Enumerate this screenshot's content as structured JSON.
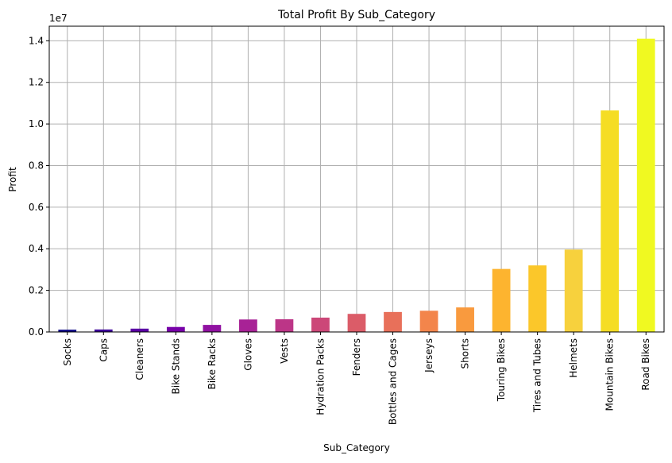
{
  "chart_data": {
    "type": "bar",
    "title": "Total Profit By Sub_Category",
    "xlabel": "Sub_Category",
    "ylabel": "Profit",
    "y_offset_label": "1e7",
    "ylim": [
      0,
      14700000
    ],
    "yticks": [
      0,
      2000000,
      4000000,
      6000000,
      8000000,
      10000000,
      12000000,
      14000000
    ],
    "ytick_labels": [
      "0.0",
      "0.2",
      "0.4",
      "0.6",
      "0.8",
      "1.0",
      "1.2",
      "1.4"
    ],
    "grid": true,
    "categories": [
      "Socks",
      "Caps",
      "Cleaners",
      "Bike Stands",
      "Bike Racks",
      "Gloves",
      "Vests",
      "Hydration Packs",
      "Fenders",
      "Bottles and Cages",
      "Jerseys",
      "Shorts",
      "Touring Bikes",
      "Tires and Tubes",
      "Helmets",
      "Mountain Bikes",
      "Road Bikes"
    ],
    "values": [
      110000,
      120000,
      160000,
      240000,
      340000,
      600000,
      610000,
      690000,
      870000,
      960000,
      1020000,
      1180000,
      3030000,
      3200000,
      3960000,
      10650000,
      14100000
    ],
    "colors": [
      "#0d0887",
      "#3d049b",
      "#5b01a5",
      "#7701a8",
      "#9011a1",
      "#a82296",
      "#bc3587",
      "#cc4778",
      "#db5c68",
      "#e8705a",
      "#f3854b",
      "#f99a3e",
      "#fdb42f",
      "#fbc72a",
      "#f7d13d",
      "#f5dd24",
      "#f0f921"
    ]
  }
}
